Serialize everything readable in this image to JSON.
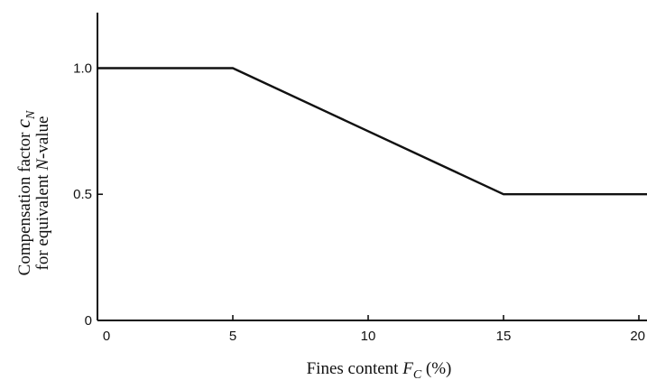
{
  "chart_data": {
    "type": "line",
    "title": "",
    "xlabel": {
      "prefix": "Fines content ",
      "var": "F",
      "sub": "C",
      "suffix": " (%)"
    },
    "ylabel": {
      "line1": {
        "prefix": "Compensation factor ",
        "var": "c",
        "sub": "N"
      },
      "line2": {
        "prefix": "for equivalent ",
        "var": "N",
        "suffix": "-value"
      }
    },
    "xlim": [
      0,
      20.3
    ],
    "ylim": [
      0,
      1.22
    ],
    "xticks": [
      0,
      5,
      10,
      15,
      20
    ],
    "xtick_labels": [
      "0",
      "5",
      "10",
      "15",
      "20"
    ],
    "yticks": [
      0,
      0.5,
      1.0
    ],
    "ytick_labels": [
      "0",
      "0.5",
      "1.0"
    ],
    "grid": false,
    "series": [
      {
        "x": [
          0,
          5,
          15,
          20.3
        ],
        "y": [
          1.0,
          1.0,
          0.5,
          0.5
        ]
      }
    ]
  }
}
